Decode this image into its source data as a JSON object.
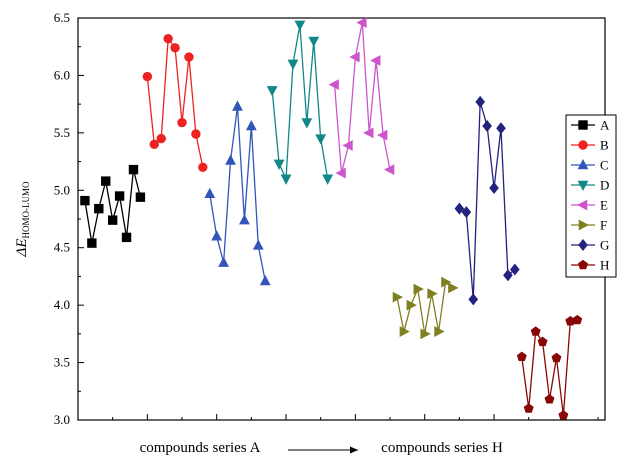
{
  "chart_data": {
    "type": "line",
    "title": "",
    "ylabel_main": "ΔE",
    "ylabel_sub": "HOMO-LUMO",
    "xlabel_left": "compounds series A",
    "xlabel_right": "compounds series H",
    "ylim": [
      3.0,
      6.5
    ],
    "yticks": [
      "3.0",
      "3.5",
      "4.0",
      "4.5",
      "5.0",
      "5.5",
      "6.0",
      "6.5"
    ],
    "xlim": [
      0,
      76
    ],
    "legend_position": "right",
    "series": [
      {
        "name": "A",
        "color": "#000000",
        "marker": "square",
        "points": [
          [
            1,
            4.91
          ],
          [
            2,
            4.54
          ],
          [
            3,
            4.84
          ],
          [
            4,
            5.08
          ],
          [
            5,
            4.74
          ],
          [
            6,
            4.95
          ],
          [
            7,
            4.59
          ],
          [
            8,
            5.18
          ],
          [
            9,
            4.94
          ]
        ]
      },
      {
        "name": "B",
        "color": "#ee2222",
        "marker": "circle",
        "points": [
          [
            10,
            5.99
          ],
          [
            11,
            5.4
          ],
          [
            12,
            5.45
          ],
          [
            13,
            6.32
          ],
          [
            14,
            6.24
          ],
          [
            15,
            5.59
          ],
          [
            16,
            6.16
          ],
          [
            17,
            5.49
          ],
          [
            18,
            5.2
          ]
        ]
      },
      {
        "name": "C",
        "color": "#3355bb",
        "marker": "triangle-up",
        "points": [
          [
            19,
            4.97
          ],
          [
            20,
            4.6
          ],
          [
            21,
            4.37
          ],
          [
            22,
            5.26
          ],
          [
            23,
            5.73
          ],
          [
            24,
            4.74
          ],
          [
            25,
            5.56
          ],
          [
            26,
            4.52
          ],
          [
            27,
            4.21
          ]
        ]
      },
      {
        "name": "D",
        "color": "#118888",
        "marker": "triangle-down",
        "points": [
          [
            28,
            5.87
          ],
          [
            29,
            5.23
          ],
          [
            30,
            5.1
          ],
          [
            31,
            6.1
          ],
          [
            32,
            6.44
          ],
          [
            33,
            5.59
          ],
          [
            34,
            6.3
          ],
          [
            35,
            5.45
          ],
          [
            36,
            5.1
          ]
        ]
      },
      {
        "name": "E",
        "color": "#cc55cc",
        "marker": "triangle-left",
        "points": [
          [
            37,
            5.92
          ],
          [
            38,
            5.15
          ],
          [
            39,
            5.39
          ],
          [
            40,
            6.16
          ],
          [
            41,
            6.46
          ],
          [
            42,
            5.5
          ],
          [
            43,
            6.13
          ],
          [
            44,
            5.48
          ],
          [
            45,
            5.18
          ]
        ]
      },
      {
        "name": "F",
        "color": "#808020",
        "marker": "triangle-right",
        "points": [
          [
            46,
            4.07
          ],
          [
            47,
            3.77
          ],
          [
            48,
            4.0
          ],
          [
            49,
            4.14
          ],
          [
            50,
            3.75
          ],
          [
            51,
            4.1
          ],
          [
            52,
            3.77
          ],
          [
            53,
            4.2
          ],
          [
            54,
            4.15
          ]
        ]
      },
      {
        "name": "G",
        "color": "#22227f",
        "marker": "diamond",
        "points": [
          [
            55,
            4.84
          ],
          [
            56,
            4.81
          ],
          [
            57,
            4.05
          ],
          [
            58,
            5.77
          ],
          [
            59,
            5.56
          ],
          [
            60,
            5.02
          ],
          [
            61,
            5.54
          ],
          [
            62,
            4.26
          ],
          [
            63,
            4.31
          ]
        ]
      },
      {
        "name": "H",
        "color": "#880808",
        "marker": "pentagon",
        "points": [
          [
            64,
            3.55
          ],
          [
            65,
            3.1
          ],
          [
            66,
            3.77
          ],
          [
            67,
            3.68
          ],
          [
            68,
            3.18
          ],
          [
            69,
            3.54
          ],
          [
            70,
            3.04
          ],
          [
            71,
            3.86
          ],
          [
            72,
            3.87
          ]
        ]
      }
    ]
  }
}
